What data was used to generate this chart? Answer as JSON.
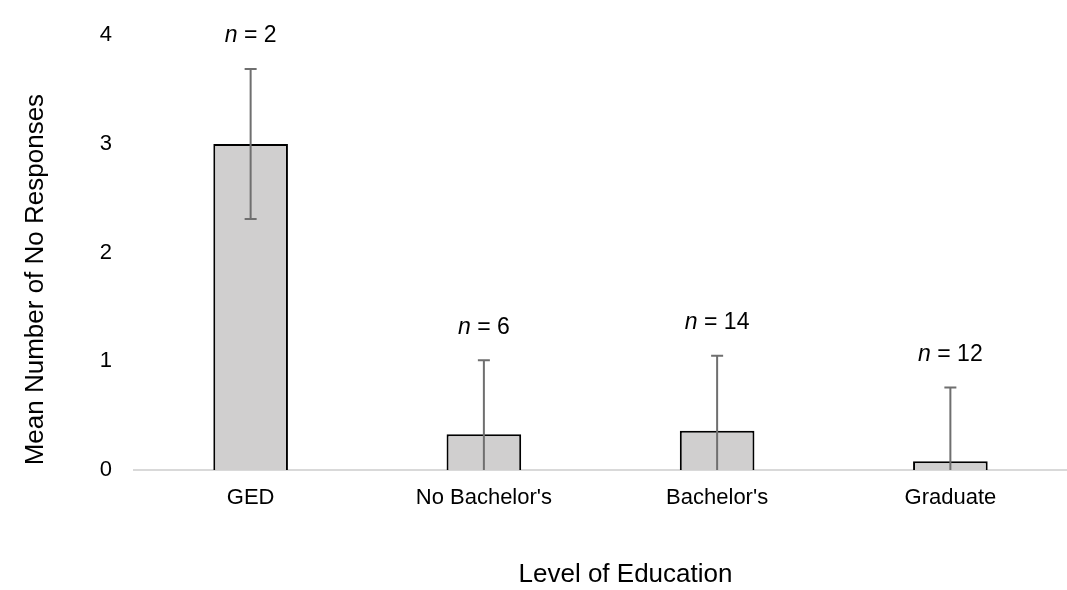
{
  "chart_data": {
    "type": "bar",
    "xlabel": "Level of Education",
    "ylabel": "Mean Number of No Responses",
    "categories": [
      "GED",
      "No Bachelor's",
      "Bachelor's",
      "Graduate"
    ],
    "values": [
      3,
      0.33,
      0.36,
      0.08
    ],
    "color": "#d0cfcf",
    "errors": [
      0.69,
      [
        0,
        1.01
      ],
      [
        0,
        1.05
      ],
      [
        0,
        0.76
      ]
    ],
    "ylim": [
      0,
      4
    ],
    "yticks": [
      0,
      1,
      2,
      3,
      4
    ],
    "annotations": [
      "n = 2",
      "n = 6",
      "n = 14",
      "n = 12"
    ]
  }
}
